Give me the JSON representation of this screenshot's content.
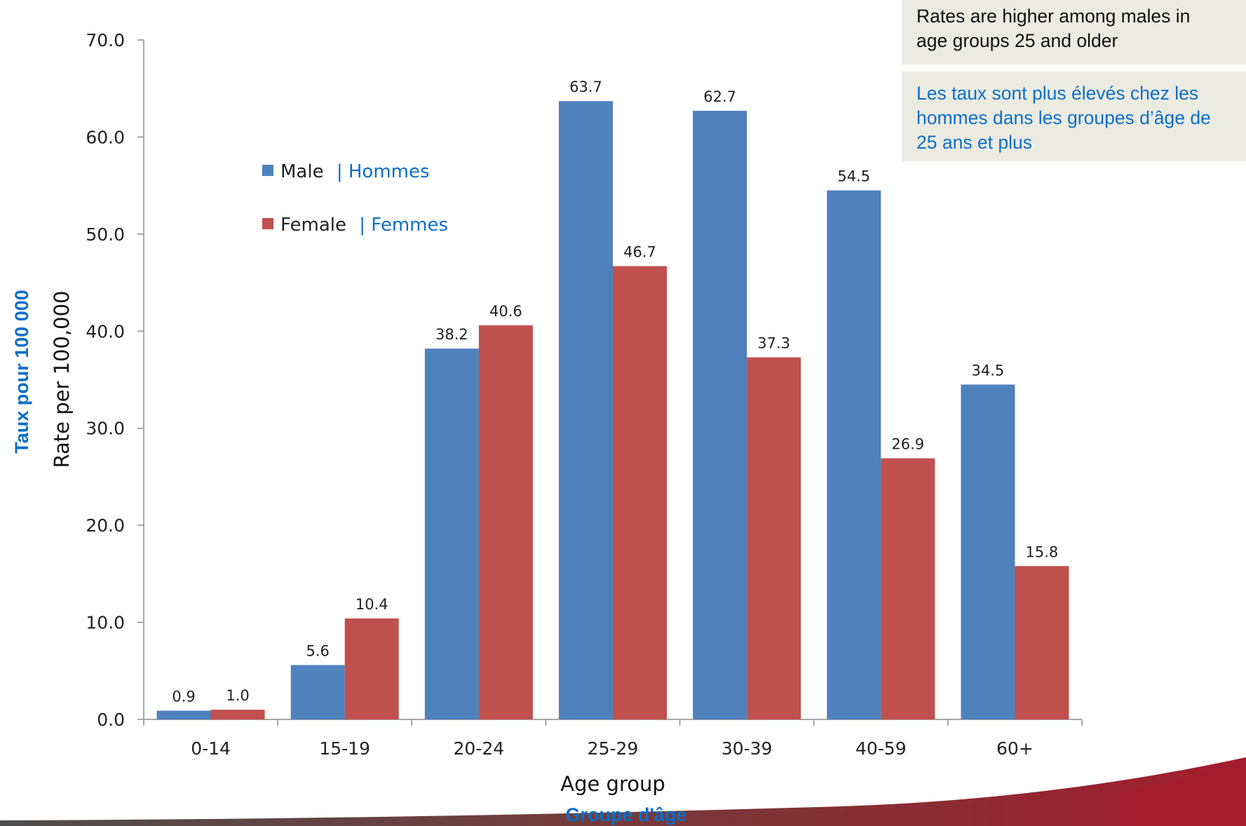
{
  "callouts": {
    "english": "Rates are higher among males in\nage groups 25 and older",
    "french": "Les taux sont plus élevés chez les\nhommes dans les groupes d’âge de\n25 ans et plus"
  },
  "legend": {
    "male_en": "Male",
    "male_fr": "| Hommes",
    "female_en": "Female",
    "female_fr": "| Femmes"
  },
  "colors": {
    "male": "#4f81bd",
    "female": "#c0504d",
    "french_text": "#0b6fc7",
    "accent": "#a51d2d"
  },
  "chart_data": {
    "type": "bar",
    "categories": [
      "0-14",
      "15-19",
      "20-24",
      "25-29",
      "30-39",
      "40-59",
      "60+"
    ],
    "series": [
      {
        "name": "Male | Hommes",
        "values": [
          0.9,
          5.6,
          38.2,
          63.7,
          62.7,
          54.5,
          34.5
        ]
      },
      {
        "name": "Female | Femmes",
        "values": [
          1.0,
          10.4,
          40.6,
          46.7,
          37.3,
          26.9,
          15.8
        ]
      }
    ],
    "ylim": [
      0,
      70
    ],
    "yticks": [
      "0.0",
      "10.0",
      "20.0",
      "30.0",
      "40.0",
      "50.0",
      "60.0",
      "70.0"
    ],
    "xlabel": "Age group",
    "xlabel_fr": "Groupe d'âge",
    "ylabel": "Rate per 100,000",
    "ylabel_fr": "Taux pour 100 000",
    "grid": false,
    "legend_position": "upper-left"
  }
}
